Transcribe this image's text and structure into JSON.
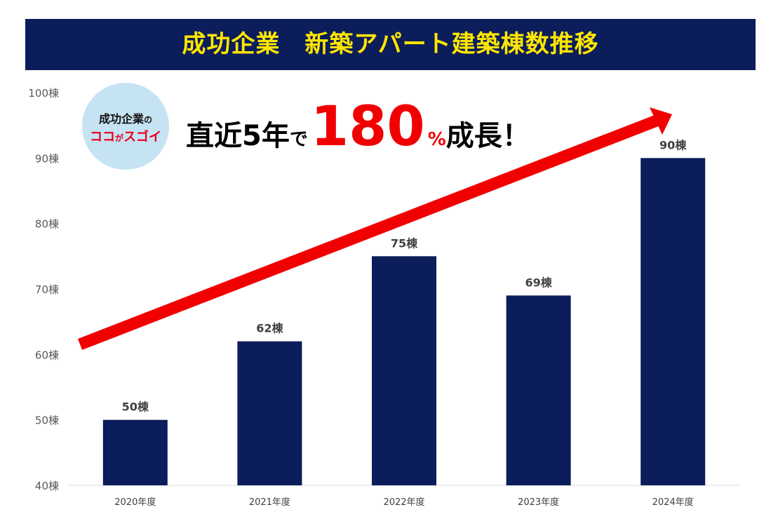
{
  "banner": {
    "title": "成功企業　新築アパート建築棟数推移"
  },
  "badge": {
    "line1_main": "成功企業",
    "line1_suffix": "の",
    "line2_a": "ココ",
    "line2_b": "が",
    "line2_c": "スゴイ"
  },
  "headline": {
    "part1": "直近5年",
    "part2": "で",
    "number": "180",
    "percent": "%",
    "part3": "成長！"
  },
  "colors": {
    "banner_bg": "#0b1d5a",
    "banner_text": "#ffe600",
    "bar": "#0b1d5a",
    "arrow": "#f00000",
    "badge_bg": "#c5e3f2",
    "accent_red": "#e8001c"
  },
  "chart_data": {
    "type": "bar",
    "categories": [
      "2020年度",
      "2021年度",
      "2022年度",
      "2023年度",
      "2024年度"
    ],
    "values": [
      50,
      62,
      75,
      69,
      90
    ],
    "value_labels": [
      "50棟",
      "62棟",
      "75棟",
      "69棟",
      "90棟"
    ],
    "ylim": [
      40,
      100
    ],
    "yticks": [
      40,
      50,
      60,
      70,
      80,
      90,
      100
    ],
    "ytick_labels": [
      "40棟",
      "50棟",
      "60棟",
      "70棟",
      "80棟",
      "90棟",
      "100棟"
    ],
    "grid": false,
    "legend": "none",
    "trend_arrow": true
  }
}
